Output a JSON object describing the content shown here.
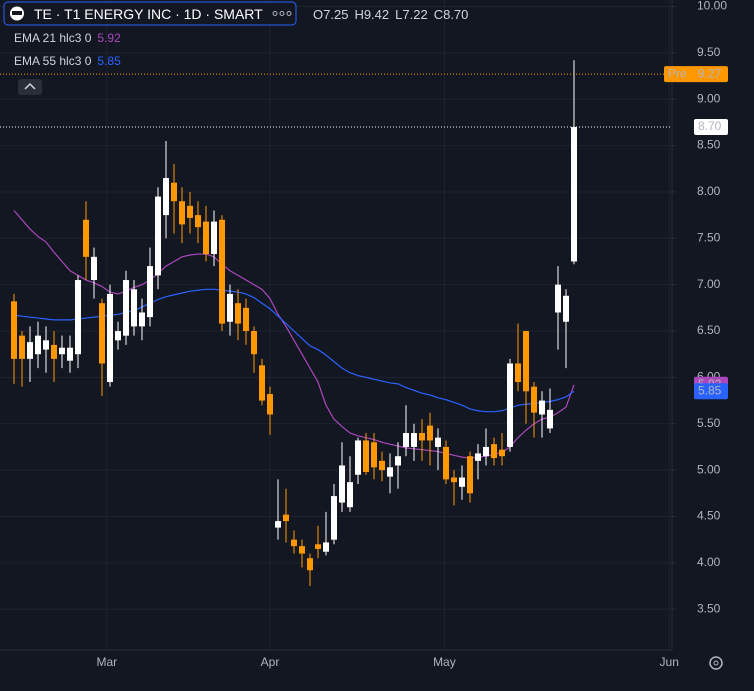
{
  "chart_data": {
    "type": "candlestick",
    "title": "TE · T1 ENERGY INC · 1D · SMART",
    "ohlc_header": [
      {
        "prefix": "O",
        "label": "7.25"
      },
      {
        "prefix": "H",
        "label": "9.42"
      },
      {
        "prefix": "L",
        "label": "7.22"
      },
      {
        "prefix": "C",
        "label": "8.70"
      }
    ],
    "up_color": "#ffffff",
    "down_color": "#ff9800",
    "open": [
      6.82,
      6.45,
      6.2,
      6.25,
      6.3,
      6.35,
      6.25,
      6.18,
      6.25,
      7.7,
      7.05,
      6.8,
      5.95,
      6.4,
      6.45,
      6.55,
      6.55,
      6.65,
      7.1,
      7.75,
      8.1,
      7.9,
      7.85,
      7.75,
      7.68,
      7.33,
      7.7,
      6.6,
      6.8,
      6.75,
      6.5,
      6.13,
      5.82,
      4.38,
      4.52,
      4.25,
      4.18,
      4.05,
      4.2,
      4.12,
      4.25,
      4.65,
      4.6,
      4.95,
      5.32,
      5.3,
      5.1,
      4.93,
      5.05,
      5.25,
      5.25,
      5.4,
      5.48,
      5.25,
      5.25,
      4.92,
      4.82,
      5.15,
      5.1,
      5.15,
      5.28,
      5.22,
      5.25,
      6.15,
      6.5,
      5.9,
      5.6,
      5.45,
      6.7,
      6.6,
      7.25
    ],
    "high": [
      6.9,
      6.5,
      6.55,
      6.6,
      6.55,
      6.5,
      6.45,
      6.45,
      7.1,
      7.9,
      7.4,
      6.85,
      7.0,
      6.6,
      7.15,
      7.05,
      6.85,
      7.4,
      8.05,
      8.55,
      8.3,
      8.05,
      8.0,
      7.9,
      7.85,
      7.8,
      7.75,
      7.0,
      6.95,
      6.85,
      6.55,
      6.2,
      5.9,
      4.9,
      4.8,
      4.35,
      4.25,
      4.1,
      4.4,
      4.55,
      4.85,
      5.3,
      5.15,
      5.35,
      5.4,
      5.4,
      5.2,
      5.18,
      5.3,
      5.7,
      5.5,
      5.55,
      5.62,
      5.45,
      5.32,
      5.0,
      5.05,
      5.2,
      5.28,
      5.45,
      5.35,
      5.4,
      6.2,
      6.58,
      6.5,
      5.95,
      5.85,
      5.88,
      7.2,
      6.95,
      9.42
    ],
    "low": [
      5.93,
      5.9,
      5.95,
      6.1,
      6.05,
      5.95,
      6.1,
      6.05,
      6.1,
      7.05,
      6.85,
      5.8,
      5.9,
      6.3,
      6.35,
      6.45,
      6.4,
      6.55,
      6.95,
      7.5,
      7.55,
      7.45,
      7.55,
      7.45,
      7.25,
      7.2,
      6.5,
      6.45,
      6.4,
      6.35,
      6.05,
      5.7,
      5.38,
      4.25,
      4.22,
      4.1,
      3.95,
      3.75,
      4.05,
      4.08,
      4.2,
      4.55,
      4.55,
      4.85,
      4.95,
      4.9,
      4.88,
      4.75,
      4.8,
      5.15,
      5.1,
      5.1,
      5.05,
      5.0,
      4.85,
      4.62,
      4.68,
      4.65,
      4.9,
      5.05,
      5.05,
      5.05,
      5.2,
      5.85,
      5.5,
      5.35,
      5.35,
      5.4,
      6.3,
      6.1,
      7.22
    ],
    "close": [
      6.2,
      6.2,
      6.38,
      6.45,
      6.4,
      6.2,
      6.32,
      6.32,
      7.05,
      7.3,
      7.3,
      6.15,
      6.9,
      6.5,
      7.05,
      6.95,
      6.7,
      7.2,
      7.95,
      8.15,
      7.9,
      7.65,
      7.72,
      7.62,
      7.33,
      7.68,
      6.58,
      6.9,
      6.58,
      6.5,
      6.25,
      5.75,
      5.6,
      4.45,
      4.45,
      4.18,
      4.1,
      3.92,
      4.15,
      4.22,
      4.72,
      5.05,
      4.87,
      5.32,
      4.98,
      5.03,
      5.0,
      5.03,
      5.15,
      5.4,
      5.4,
      5.32,
      5.32,
      5.35,
      4.9,
      4.87,
      4.92,
      4.75,
      5.18,
      5.25,
      5.13,
      5.15,
      6.15,
      5.95,
      5.85,
      5.62,
      5.75,
      5.65,
      7.0,
      6.88,
      8.7
    ],
    "series": [
      {
        "name": "EMA 21 hlc3 0",
        "color": "#ab47bc",
        "values": [
          7.8,
          7.7,
          7.6,
          7.52,
          7.46,
          7.35,
          7.25,
          7.15,
          7.1,
          7.05,
          7.02,
          6.98,
          6.92,
          6.9,
          6.93,
          6.97,
          7.0,
          7.05,
          7.12,
          7.2,
          7.25,
          7.3,
          7.32,
          7.33,
          7.33,
          7.3,
          7.22,
          7.15,
          7.1,
          7.05,
          7.0,
          6.95,
          6.85,
          6.68,
          6.55,
          6.4,
          6.25,
          6.1,
          5.95,
          5.7,
          5.55,
          5.47,
          5.4,
          5.37,
          5.35,
          5.33,
          5.3,
          5.28,
          5.26,
          5.24,
          5.23,
          5.22,
          5.21,
          5.2,
          5.18,
          5.16,
          5.14,
          5.13,
          5.14,
          5.15,
          5.17,
          5.19,
          5.25,
          5.35,
          5.43,
          5.5,
          5.55,
          5.57,
          5.62,
          5.68,
          5.92
        ]
      },
      {
        "name": "EMA 55 hlc3 0",
        "color": "#2962ff",
        "values": [
          6.67,
          6.66,
          6.65,
          6.64,
          6.63,
          6.62,
          6.62,
          6.62,
          6.63,
          6.64,
          6.65,
          6.66,
          6.67,
          6.68,
          6.7,
          6.72,
          6.76,
          6.8,
          6.84,
          6.87,
          6.89,
          6.91,
          6.93,
          6.94,
          6.95,
          6.95,
          6.94,
          6.93,
          6.92,
          6.9,
          6.86,
          6.8,
          6.74,
          6.66,
          6.58,
          6.5,
          6.42,
          6.34,
          6.3,
          6.24,
          6.17,
          6.1,
          6.05,
          6.02,
          6.0,
          5.98,
          5.96,
          5.94,
          5.93,
          5.89,
          5.86,
          5.83,
          5.81,
          5.78,
          5.76,
          5.73,
          5.7,
          5.66,
          5.64,
          5.63,
          5.63,
          5.64,
          5.67,
          5.7,
          5.71,
          5.72,
          5.73,
          5.74,
          5.76,
          5.79,
          5.85
        ]
      }
    ],
    "price_badges": [
      {
        "tag": "Pre",
        "label": "9.27",
        "value": 9.27,
        "color": "#ff9800",
        "text_color": "#131722",
        "line": true
      },
      {
        "label": "8.70",
        "value": 8.7,
        "color": "#ffffff",
        "text_color": "#131722",
        "line": true
      },
      {
        "label": "5.92",
        "value": 5.92,
        "color": "#ab47bc",
        "text_color": "#ffffff",
        "line": false
      },
      {
        "label": "5.85",
        "value": 5.85,
        "color": "#2962ff",
        "text_color": "#ffffff",
        "line": false
      }
    ],
    "xlim": [
      -1.75,
      82.25
    ],
    "xticks": [
      {
        "value": 11.6,
        "label": "Mar"
      },
      {
        "value": 32,
        "label": "Apr"
      },
      {
        "value": 53.8,
        "label": "May"
      },
      {
        "value": 81.9,
        "label": "Jun"
      }
    ],
    "ylim": [
      3.06,
      10.07
    ],
    "yticks": [
      {
        "value": 3.5,
        "label": "3.50"
      },
      {
        "value": 4,
        "label": "4.00"
      },
      {
        "value": 4.5,
        "label": "4.50"
      },
      {
        "value": 5,
        "label": "5.00"
      },
      {
        "value": 5.5,
        "label": "5.50"
      },
      {
        "value": 6,
        "label": "6.00"
      },
      {
        "value": 6.5,
        "label": "6.50"
      },
      {
        "value": 7,
        "label": "7.00"
      },
      {
        "value": 7.5,
        "label": "7.50"
      },
      {
        "value": 8,
        "label": "8.00"
      },
      {
        "value": 8.5,
        "label": "8.50"
      },
      {
        "value": 9,
        "label": "9.00"
      },
      {
        "value": 9.5,
        "label": "9.50"
      },
      {
        "value": 10,
        "label": "10.00"
      }
    ],
    "grid": true
  }
}
